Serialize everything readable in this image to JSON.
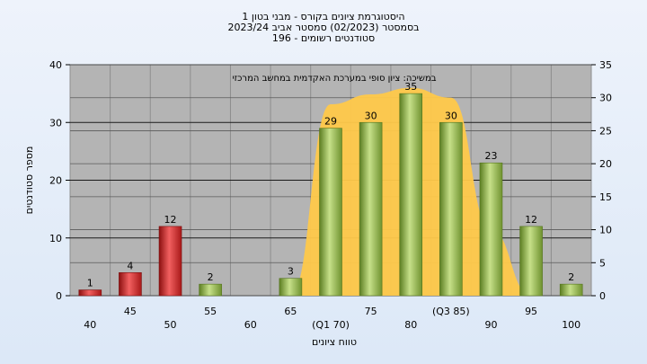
{
  "chart_data": {
    "type": "bar",
    "title_lines": [
      "היסטוגרמת ציונים בקורס - מבני בטון 1",
      "בסמסטר  (02/2023)  סמסטר אביב 2023/24",
      "סטודנטים רשומים - 196"
    ],
    "annotation": "במשיכה: ציון סופי במערכת האקדמית במחשב המרכזי",
    "xlabel": "טווח ציונים",
    "ylabel": "מספר סטודנטים",
    "ylim": [
      0,
      40
    ],
    "y2lim": [
      0,
      35
    ],
    "y_ticks": [
      0,
      10,
      20,
      30,
      40
    ],
    "y2_ticks": [
      0,
      5,
      10,
      15,
      20,
      25,
      30,
      35
    ],
    "grid": true,
    "categories": [
      "40",
      "45",
      "50",
      "55",
      "60",
      "65",
      "(Q1 70)",
      "75",
      "80",
      "(Q3 85)",
      "90",
      "95",
      "100"
    ],
    "values": [
      1,
      4,
      12,
      2,
      0,
      3,
      29,
      30,
      35,
      30,
      23,
      12,
      2
    ],
    "value_labels": [
      "1",
      "4",
      "12",
      "2",
      "",
      "3",
      "29",
      "30",
      "35",
      "30",
      "23",
      "12",
      "2"
    ],
    "bar_colors": [
      "#d42b2b",
      "#d42b2b",
      "#d42b2b",
      "#8db64a",
      "#8db64a",
      "#8db64a",
      "#8db64a",
      "#8db64a",
      "#8db64a",
      "#8db64a",
      "#8db64a",
      "#8db64a",
      "#8db64a"
    ],
    "curve_values": [
      0,
      0,
      0,
      0,
      0,
      0,
      29,
      30.5,
      31.5,
      30,
      10,
      0,
      0
    ],
    "colors": {
      "plot_bg": "#b4b4b4",
      "curve_fill": "#ffc94a",
      "fail": "#d42b2b",
      "pass": "#8db64a"
    }
  }
}
